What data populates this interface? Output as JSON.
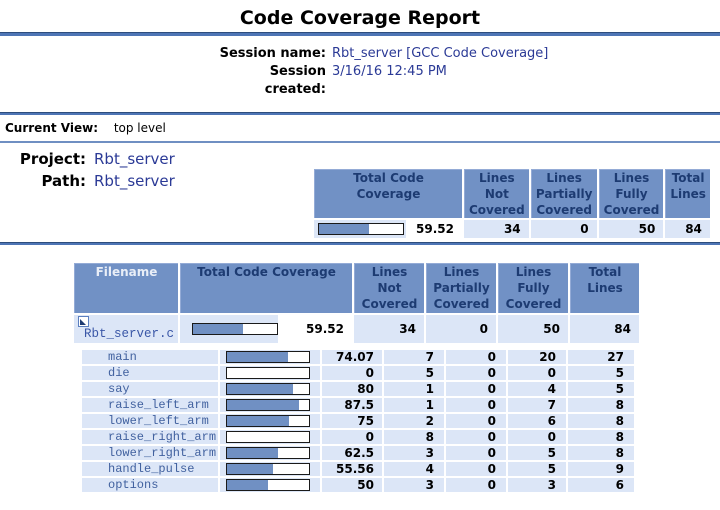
{
  "title": "Code Coverage Report",
  "session": {
    "name_label": "Session name:",
    "name_value": "Rbt_server [GCC Code Coverage]",
    "created_label": "Session created:",
    "created_value": "3/16/16 12:45 PM"
  },
  "current_view": {
    "label": "Current View:",
    "value": "top level"
  },
  "project": {
    "label": "Project:",
    "value": "Rbt_server"
  },
  "path": {
    "label": "Path:",
    "value": "Rbt_server"
  },
  "summary_table": {
    "headers": {
      "coverage": "Total Code Coverage",
      "not_covered": "Lines Not Covered",
      "partially": "Lines Partially Covered",
      "fully": "Lines Fully Covered",
      "total": "Total Lines"
    },
    "row": {
      "percent": 59.52,
      "percent_label": "59.52",
      "not_covered": "34",
      "partially": "0",
      "fully": "50",
      "total": "84"
    }
  },
  "main_table": {
    "headers": {
      "filename": "Filename",
      "coverage": "Total Code Coverage",
      "not_covered": "Lines Not Covered",
      "partially": "Lines Partially Covered",
      "fully": "Lines Fully Covered",
      "total": "Total Lines"
    },
    "file_row": {
      "filename": "Rbt_server.c",
      "percent": 59.52,
      "percent_label": "59.52",
      "not_covered": "34",
      "partially": "0",
      "fully": "50",
      "total": "84"
    },
    "functions": [
      {
        "name": "main",
        "percent": 74.07,
        "percent_label": "74.07",
        "not_covered": "7",
        "partially": "0",
        "fully": "20",
        "total": "27"
      },
      {
        "name": "die",
        "percent": 0,
        "percent_label": "0",
        "not_covered": "5",
        "partially": "0",
        "fully": "0",
        "total": "5"
      },
      {
        "name": "say",
        "percent": 80,
        "percent_label": "80",
        "not_covered": "1",
        "partially": "0",
        "fully": "4",
        "total": "5"
      },
      {
        "name": "raise_left_arm",
        "percent": 87.5,
        "percent_label": "87.5",
        "not_covered": "1",
        "partially": "0",
        "fully": "7",
        "total": "8"
      },
      {
        "name": "lower_left_arm",
        "percent": 75,
        "percent_label": "75",
        "not_covered": "2",
        "partially": "0",
        "fully": "6",
        "total": "8"
      },
      {
        "name": "raise_right_arm",
        "percent": 0,
        "percent_label": "0",
        "not_covered": "8",
        "partially": "0",
        "fully": "0",
        "total": "8"
      },
      {
        "name": "lower_right_arm",
        "percent": 62.5,
        "percent_label": "62.5",
        "not_covered": "3",
        "partially": "0",
        "fully": "5",
        "total": "8"
      },
      {
        "name": "handle_pulse",
        "percent": 55.56,
        "percent_label": "55.56",
        "not_covered": "4",
        "partially": "0",
        "fully": "5",
        "total": "9"
      },
      {
        "name": "options",
        "percent": 50,
        "percent_label": "50",
        "not_covered": "3",
        "partially": "0",
        "fully": "3",
        "total": "6"
      }
    ]
  },
  "colors": {
    "header_bg": "#7191c5",
    "header_text": "#1d3b72",
    "row_bg": "#dce6f7",
    "bar_fill": "#7090c3",
    "rule": "#4e75b5",
    "link": "#41619f",
    "value_blue": "#2b3a96"
  }
}
